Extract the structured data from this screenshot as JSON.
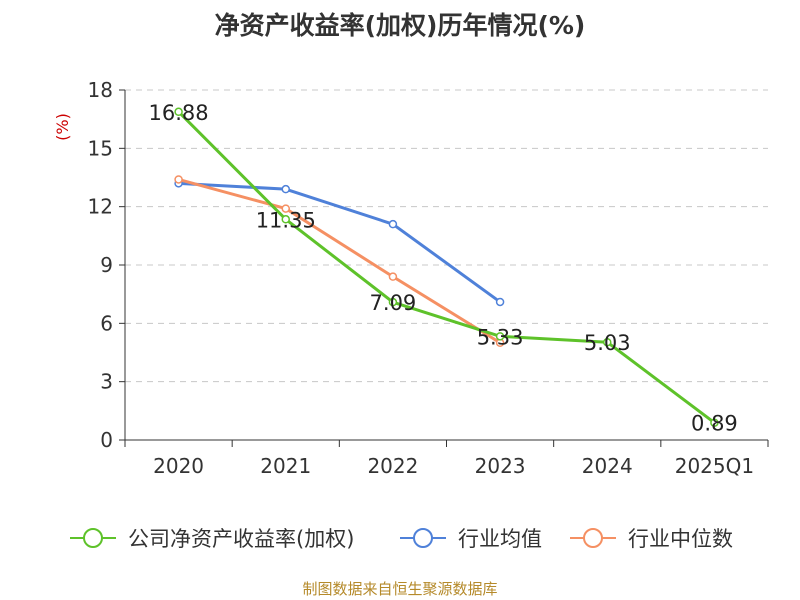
{
  "title": "净资产收益率(加权)历年情况(%)",
  "source": "制图数据来自恒生聚源数据库",
  "chart_data": {
    "type": "line",
    "title": "净资产收益率(加权)历年情况(%)",
    "ylabel": "(%)",
    "xlabel": "",
    "categories": [
      "2020",
      "2021",
      "2022",
      "2023",
      "2024",
      "2025Q1"
    ],
    "ylim": [
      0,
      18
    ],
    "yticks": [
      0,
      3,
      6,
      9,
      12,
      15,
      18
    ],
    "grid": "horizontal-dashed",
    "legend_position": "bottom",
    "series": [
      {
        "name": "公司净资产收益率(加权)",
        "color": "#5ec22a",
        "values": [
          16.88,
          11.35,
          7.09,
          5.33,
          5.03,
          0.89
        ],
        "labels": [
          "16.88",
          "11.35",
          "7.09",
          "5.33",
          "5.03",
          "0.89"
        ]
      },
      {
        "name": "行业均值",
        "color": "#4f81d9",
        "values": [
          13.2,
          12.9,
          11.1,
          7.1,
          null,
          null
        ]
      },
      {
        "name": "行业中位数",
        "color": "#f59063",
        "values": [
          13.4,
          11.9,
          8.4,
          5.0,
          null,
          null
        ]
      }
    ]
  }
}
